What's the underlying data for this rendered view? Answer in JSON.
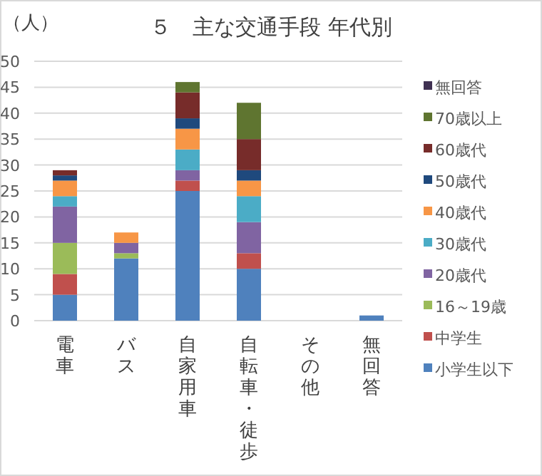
{
  "chart_data": {
    "type": "bar",
    "stacked": true,
    "title": "５　主な交通手段 年代別",
    "ylabel": "（人）",
    "categories": [
      "電車",
      "バス",
      "自家用車",
      "自転車・徒歩",
      "その他",
      "無回答"
    ],
    "series": [
      {
        "name": "小学生以下",
        "color": "#4f81bd",
        "values": [
          5,
          12,
          25,
          10,
          0,
          1
        ]
      },
      {
        "name": "中学生",
        "color": "#c0504d",
        "values": [
          4,
          0,
          2,
          3,
          0,
          0
        ]
      },
      {
        "name": "16～19歳",
        "color": "#9bbb59",
        "values": [
          6,
          1,
          0,
          0,
          0,
          0
        ]
      },
      {
        "name": "20歳代",
        "color": "#8064a2",
        "values": [
          7,
          2,
          2,
          6,
          0,
          0
        ]
      },
      {
        "name": "30歳代",
        "color": "#4bacc6",
        "values": [
          2,
          0,
          4,
          5,
          0,
          0
        ]
      },
      {
        "name": "40歳代",
        "color": "#f79646",
        "values": [
          3,
          2,
          4,
          3,
          0,
          0
        ]
      },
      {
        "name": "50歳代",
        "color": "#1f497d",
        "values": [
          1,
          0,
          2,
          2,
          0,
          0
        ]
      },
      {
        "name": "60歳代",
        "color": "#772c2a",
        "values": [
          1,
          0,
          5,
          6,
          0,
          0
        ]
      },
      {
        "name": "70歳以上",
        "color": "#5f7530",
        "values": [
          0,
          0,
          2,
          7,
          0,
          0
        ]
      },
      {
        "name": "無回答",
        "color": "#403152",
        "values": [
          0,
          0,
          0,
          0,
          0,
          0
        ]
      }
    ],
    "ylim": [
      0,
      50
    ],
    "yticks": [
      0,
      5,
      10,
      15,
      20,
      25,
      30,
      35,
      40,
      45,
      50
    ],
    "grid": "y",
    "legend": "right"
  }
}
